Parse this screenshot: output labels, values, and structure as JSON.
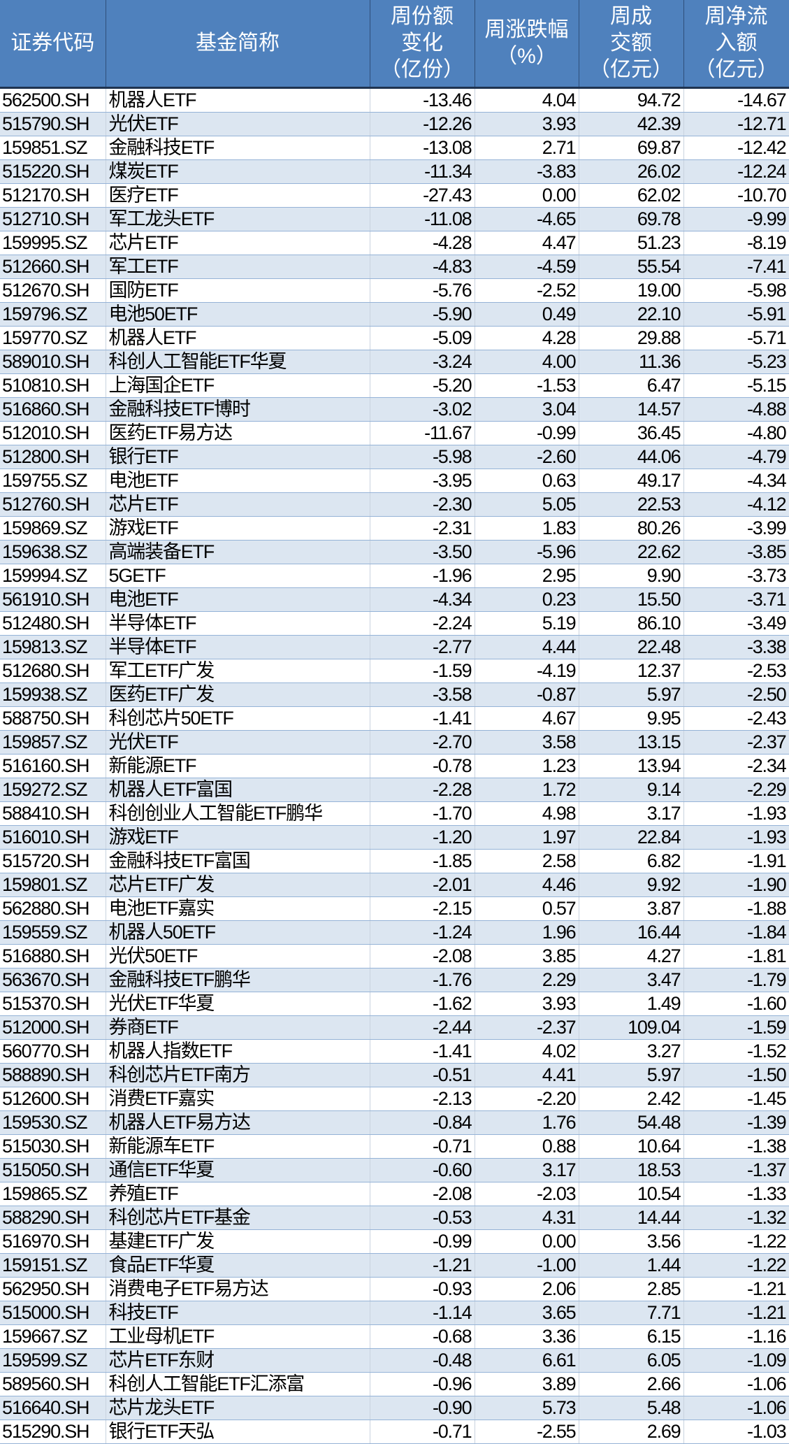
{
  "colors": {
    "header_bg": "#4F81BD",
    "header_text": "#FFFFFF",
    "row_alt": "#DCE6F1",
    "row": "#FFFFFF"
  },
  "headers": [
    [
      "证券代码"
    ],
    [
      "基金简称"
    ],
    [
      "周份额",
      "变化",
      "（亿份）"
    ],
    [
      "周涨跌幅",
      "（%）"
    ],
    [
      "周成",
      "交额",
      "（亿元）"
    ],
    [
      "周净流",
      "入额",
      "（亿元）"
    ]
  ],
  "rows": [
    [
      "562500.SH",
      "机器人ETF",
      "-13.46",
      "4.04",
      "94.72",
      "-14.67"
    ],
    [
      "515790.SH",
      "光伏ETF",
      "-12.26",
      "3.93",
      "42.39",
      "-12.71"
    ],
    [
      "159851.SZ",
      "金融科技ETF",
      "-13.08",
      "2.71",
      "69.87",
      "-12.42"
    ],
    [
      "515220.SH",
      "煤炭ETF",
      "-11.34",
      "-3.83",
      "26.02",
      "-12.24"
    ],
    [
      "512170.SH",
      "医疗ETF",
      "-27.43",
      "0.00",
      "62.02",
      "-10.70"
    ],
    [
      "512710.SH",
      "军工龙头ETF",
      "-11.08",
      "-4.65",
      "69.78",
      "-9.99"
    ],
    [
      "159995.SZ",
      "芯片ETF",
      "-4.28",
      "4.47",
      "51.23",
      "-8.19"
    ],
    [
      "512660.SH",
      "军工ETF",
      "-4.83",
      "-4.59",
      "55.54",
      "-7.41"
    ],
    [
      "512670.SH",
      "国防ETF",
      "-5.76",
      "-2.52",
      "19.00",
      "-5.98"
    ],
    [
      "159796.SZ",
      "电池50ETF",
      "-5.90",
      "0.49",
      "22.10",
      "-5.91"
    ],
    [
      "159770.SZ",
      "机器人ETF",
      "-5.09",
      "4.28",
      "29.88",
      "-5.71"
    ],
    [
      "589010.SH",
      "科创人工智能ETF华夏",
      "-3.24",
      "4.00",
      "11.36",
      "-5.23"
    ],
    [
      "510810.SH",
      "上海国企ETF",
      "-5.20",
      "-1.53",
      "6.47",
      "-5.15"
    ],
    [
      "516860.SH",
      "金融科技ETF博时",
      "-3.02",
      "3.04",
      "14.57",
      "-4.88"
    ],
    [
      "512010.SH",
      "医药ETF易方达",
      "-11.67",
      "-0.99",
      "36.45",
      "-4.80"
    ],
    [
      "512800.SH",
      "银行ETF",
      "-5.98",
      "-2.60",
      "44.06",
      "-4.79"
    ],
    [
      "159755.SZ",
      "电池ETF",
      "-3.95",
      "0.63",
      "49.17",
      "-4.34"
    ],
    [
      "512760.SH",
      "芯片ETF",
      "-2.30",
      "5.05",
      "22.53",
      "-4.12"
    ],
    [
      "159869.SZ",
      "游戏ETF",
      "-2.31",
      "1.83",
      "80.26",
      "-3.99"
    ],
    [
      "159638.SZ",
      "高端装备ETF",
      "-3.50",
      "-5.96",
      "22.62",
      "-3.85"
    ],
    [
      "159994.SZ",
      "5GETF",
      "-1.96",
      "2.95",
      "9.90",
      "-3.73"
    ],
    [
      "561910.SH",
      "电池ETF",
      "-4.34",
      "0.23",
      "15.50",
      "-3.71"
    ],
    [
      "512480.SH",
      "半导体ETF",
      "-2.24",
      "5.19",
      "86.10",
      "-3.49"
    ],
    [
      "159813.SZ",
      "半导体ETF",
      "-2.77",
      "4.44",
      "22.48",
      "-3.38"
    ],
    [
      "512680.SH",
      "军工ETF广发",
      "-1.59",
      "-4.19",
      "12.37",
      "-2.53"
    ],
    [
      "159938.SZ",
      "医药ETF广发",
      "-3.58",
      "-0.87",
      "5.97",
      "-2.50"
    ],
    [
      "588750.SH",
      "科创芯片50ETF",
      "-1.41",
      "4.67",
      "9.95",
      "-2.43"
    ],
    [
      "159857.SZ",
      "光伏ETF",
      "-2.70",
      "3.58",
      "13.15",
      "-2.37"
    ],
    [
      "516160.SH",
      "新能源ETF",
      "-0.78",
      "1.23",
      "13.94",
      "-2.34"
    ],
    [
      "159272.SZ",
      "机器人ETF富国",
      "-2.28",
      "1.72",
      "9.14",
      "-2.29"
    ],
    [
      "588410.SH",
      "科创创业人工智能ETF鹏华",
      "-1.70",
      "4.98",
      "3.17",
      "-1.93"
    ],
    [
      "516010.SH",
      "游戏ETF",
      "-1.20",
      "1.97",
      "22.84",
      "-1.93"
    ],
    [
      "515720.SH",
      "金融科技ETF富国",
      "-1.85",
      "2.58",
      "6.82",
      "-1.91"
    ],
    [
      "159801.SZ",
      "芯片ETF广发",
      "-2.01",
      "4.46",
      "9.92",
      "-1.90"
    ],
    [
      "562880.SH",
      "电池ETF嘉实",
      "-2.15",
      "0.57",
      "3.87",
      "-1.88"
    ],
    [
      "159559.SZ",
      "机器人50ETF",
      "-1.24",
      "1.96",
      "16.44",
      "-1.84"
    ],
    [
      "516880.SH",
      "光伏50ETF",
      "-2.08",
      "3.85",
      "4.27",
      "-1.81"
    ],
    [
      "563670.SH",
      "金融科技ETF鹏华",
      "-1.76",
      "2.29",
      "3.47",
      "-1.79"
    ],
    [
      "515370.SH",
      "光伏ETF华夏",
      "-1.62",
      "3.93",
      "1.49",
      "-1.60"
    ],
    [
      "512000.SH",
      "券商ETF",
      "-2.44",
      "-2.37",
      "109.04",
      "-1.59"
    ],
    [
      "560770.SH",
      "机器人指数ETF",
      "-1.41",
      "4.02",
      "3.27",
      "-1.52"
    ],
    [
      "588890.SH",
      "科创芯片ETF南方",
      "-0.51",
      "4.41",
      "5.97",
      "-1.50"
    ],
    [
      "512600.SH",
      "消费ETF嘉实",
      "-2.13",
      "-2.20",
      "2.42",
      "-1.45"
    ],
    [
      "159530.SZ",
      "机器人ETF易方达",
      "-0.84",
      "1.76",
      "54.48",
      "-1.39"
    ],
    [
      "515030.SH",
      "新能源车ETF",
      "-0.71",
      "0.88",
      "10.64",
      "-1.38"
    ],
    [
      "515050.SH",
      "通信ETF华夏",
      "-0.60",
      "3.17",
      "18.53",
      "-1.37"
    ],
    [
      "159865.SZ",
      "养殖ETF",
      "-2.08",
      "-2.03",
      "10.54",
      "-1.33"
    ],
    [
      "588290.SH",
      "科创芯片ETF基金",
      "-0.53",
      "4.31",
      "14.44",
      "-1.32"
    ],
    [
      "516970.SH",
      "基建ETF广发",
      "-0.99",
      "0.00",
      "3.56",
      "-1.22"
    ],
    [
      "159151.SZ",
      "食品ETF华夏",
      "-1.21",
      "-1.00",
      "1.44",
      "-1.22"
    ],
    [
      "562950.SH",
      "消费电子ETF易方达",
      "-0.93",
      "2.06",
      "2.85",
      "-1.21"
    ],
    [
      "515000.SH",
      "科技ETF",
      "-1.14",
      "3.65",
      "7.71",
      "-1.21"
    ],
    [
      "159667.SZ",
      "工业母机ETF",
      "-0.68",
      "3.36",
      "6.15",
      "-1.16"
    ],
    [
      "159599.SZ",
      "芯片ETF东财",
      "-0.48",
      "6.61",
      "6.05",
      "-1.09"
    ],
    [
      "589560.SH",
      "科创人工智能ETF汇添富",
      "-0.96",
      "3.89",
      "2.66",
      "-1.06"
    ],
    [
      "516640.SH",
      "芯片龙头ETF",
      "-0.90",
      "5.73",
      "5.48",
      "-1.06"
    ],
    [
      "515290.SH",
      "银行ETF天弘",
      "-0.71",
      "-2.55",
      "2.69",
      "-1.03"
    ]
  ]
}
